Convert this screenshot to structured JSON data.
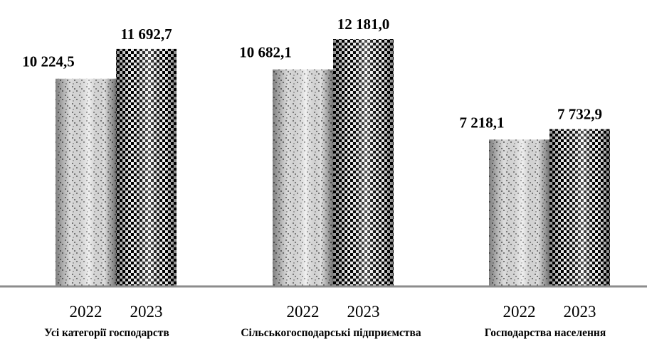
{
  "chart_data": {
    "type": "bar",
    "categories": [
      "Усі категорії господарств",
      "Сільськогосподарські підприємства",
      "Господарства населення"
    ],
    "series": [
      {
        "name": "2022",
        "values": [
          10224.5,
          10682.1,
          7218.1
        ],
        "labels": [
          "10 224,5",
          "10 682,1",
          "7 218,1"
        ]
      },
      {
        "name": "2023",
        "values": [
          11692.7,
          12181.0,
          7732.9
        ],
        "labels": [
          "11 692,7",
          "12 181,0",
          "7 732,9"
        ]
      }
    ],
    "ylim": [
      0,
      12500
    ],
    "grid": false,
    "legend": "none"
  }
}
